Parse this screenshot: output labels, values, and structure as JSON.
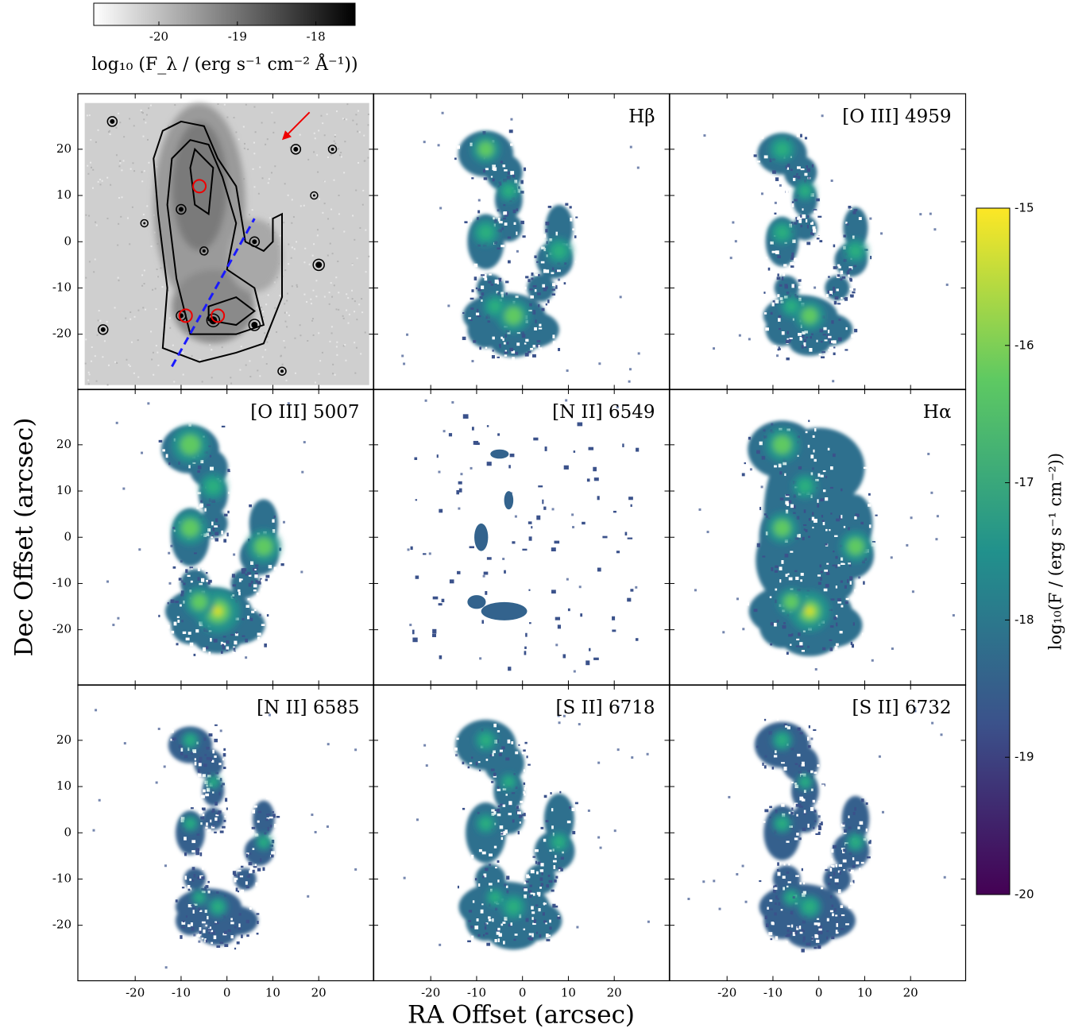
{
  "chart_data": {
    "type": "image-grid",
    "xlabel": "RA Offset (arcsec)",
    "ylabel": "Dec Offset (arcsec)",
    "xlim": [
      -32.5,
      32
    ],
    "ylim": [
      -32,
      32
    ],
    "xticks": [
      -20,
      -10,
      0,
      10,
      20
    ],
    "yticks": [
      -20,
      -10,
      0,
      10,
      20
    ],
    "panel_labels": [
      "Hβ",
      "[O III] 4959",
      "[O III] 5007",
      "[N II] 6549",
      "Hα",
      "[N II] 6585",
      "[S II] 6718",
      "[S II] 6732"
    ],
    "continuum_colorbar": {
      "label": "log₁₀ (F_λ / (erg s⁻¹ cm⁻² Å⁻¹))",
      "lim": [
        -20.83,
        -17.5
      ],
      "ticks": [
        -20,
        -19,
        -18
      ],
      "colors": [
        "#ffffff",
        "#000000"
      ]
    },
    "line_colorbar": {
      "label": "log₁₀(F / (erg s⁻¹ cm⁻²))",
      "lim": [
        -20,
        -15
      ],
      "ticks": [
        -15,
        -16,
        -17,
        -18,
        -19,
        -20
      ],
      "colors": [
        "#440154",
        "#3b528b",
        "#21918c",
        "#5ec962",
        "#fde725"
      ]
    }
  }
}
